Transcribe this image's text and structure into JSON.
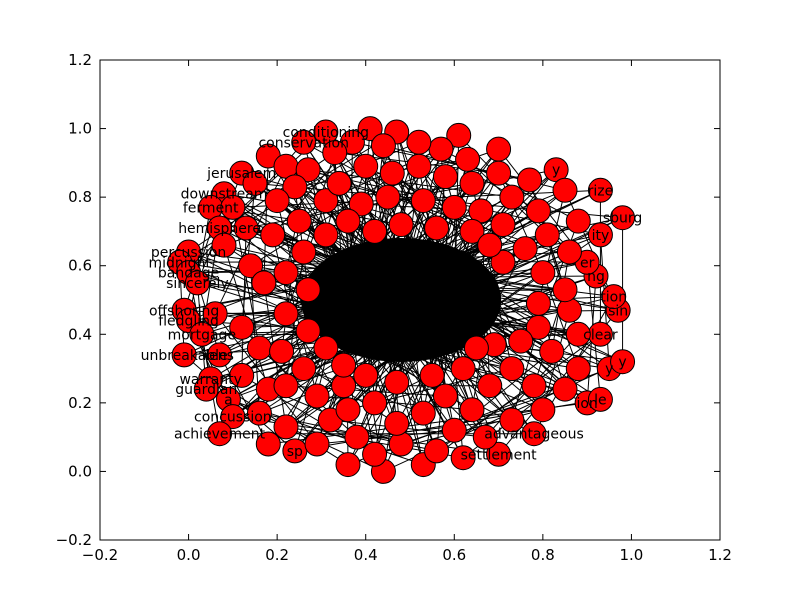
{
  "figure": {
    "background": "#ffffff"
  },
  "chart_data": {
    "type": "scatter",
    "title": "",
    "xlabel": "",
    "ylabel": "",
    "xlim": [
      -0.2,
      1.2
    ],
    "ylim": [
      -0.2,
      1.2
    ],
    "grid": false,
    "x_ticks": [
      -0.2,
      0.0,
      0.2,
      0.4,
      0.6,
      0.8,
      1.0,
      1.2
    ],
    "x_tick_labels": [
      "−0.2",
      "0.0",
      "0.2",
      "0.4",
      "0.6",
      "0.8",
      "1.0",
      "1.2"
    ],
    "y_ticks": [
      -0.2,
      0.0,
      0.2,
      0.4,
      0.6,
      0.8,
      1.0,
      1.2
    ],
    "y_tick_labels": [
      "−0.2",
      "0.0",
      "0.2",
      "0.4",
      "0.6",
      "0.8",
      "1.0",
      "1.2"
    ],
    "node_color": "#ff0000",
    "edge_color": "#000000",
    "center": [
      0.48,
      0.5
    ],
    "nodes": [
      {
        "x": 0.31,
        "y": 0.99,
        "label": "conditioning"
      },
      {
        "x": 0.41,
        "y": 1.0,
        "label": ""
      },
      {
        "x": 0.47,
        "y": 0.99,
        "label": ""
      },
      {
        "x": 0.26,
        "y": 0.96,
        "label": "conservation"
      },
      {
        "x": 0.12,
        "y": 0.87,
        "label": "jerusalem"
      },
      {
        "x": 0.08,
        "y": 0.81,
        "label": "downstream"
      },
      {
        "x": 0.05,
        "y": 0.77,
        "label": "ferment"
      },
      {
        "x": 0.07,
        "y": 0.71,
        "label": "hemisphere"
      },
      {
        "x": 0.0,
        "y": 0.64,
        "label": "percussion"
      },
      {
        "x": -0.02,
        "y": 0.61,
        "label": "midnight"
      },
      {
        "x": 0.0,
        "y": 0.58,
        "label": "bandage"
      },
      {
        "x": 0.02,
        "y": 0.55,
        "label": "sincerely"
      },
      {
        "x": -0.01,
        "y": 0.47,
        "label": "offshoring"
      },
      {
        "x": 0.0,
        "y": 0.44,
        "label": "fledgling"
      },
      {
        "x": 0.03,
        "y": 0.4,
        "label": "mortgage"
      },
      {
        "x": 0.07,
        "y": 0.34,
        "label": "lens"
      },
      {
        "x": -0.01,
        "y": 0.34,
        "label": "unbreakable"
      },
      {
        "x": 0.05,
        "y": 0.27,
        "label": "warranty"
      },
      {
        "x": 0.04,
        "y": 0.24,
        "label": "guardian"
      },
      {
        "x": 0.09,
        "y": 0.21,
        "label": "a"
      },
      {
        "x": 0.1,
        "y": 0.16,
        "label": "concussion"
      },
      {
        "x": 0.07,
        "y": 0.11,
        "label": "achievement"
      },
      {
        "x": 0.18,
        "y": 0.08,
        "label": ""
      },
      {
        "x": 0.24,
        "y": 0.06,
        "label": "sp"
      },
      {
        "x": 0.36,
        "y": 0.02,
        "label": ""
      },
      {
        "x": 0.44,
        "y": 0.0,
        "label": ""
      },
      {
        "x": 0.53,
        "y": 0.02,
        "label": ""
      },
      {
        "x": 0.7,
        "y": 0.05,
        "label": "settlement"
      },
      {
        "x": 0.78,
        "y": 0.11,
        "label": "advantageous"
      },
      {
        "x": 0.9,
        "y": 0.2,
        "label": "ion"
      },
      {
        "x": 0.93,
        "y": 0.21,
        "label": "le"
      },
      {
        "x": 0.95,
        "y": 0.3,
        "label": "y"
      },
      {
        "x": 0.98,
        "y": 0.32,
        "label": "y"
      },
      {
        "x": 0.93,
        "y": 0.4,
        "label": "clear"
      },
      {
        "x": 0.97,
        "y": 0.47,
        "label": "sin"
      },
      {
        "x": 0.96,
        "y": 0.51,
        "label": "tion"
      },
      {
        "x": 0.92,
        "y": 0.57,
        "label": "ng"
      },
      {
        "x": 0.9,
        "y": 0.61,
        "label": "er"
      },
      {
        "x": 0.93,
        "y": 0.69,
        "label": "ity"
      },
      {
        "x": 0.98,
        "y": 0.74,
        "label": "sburg"
      },
      {
        "x": 0.93,
        "y": 0.82,
        "label": "rize"
      },
      {
        "x": 0.83,
        "y": 0.88,
        "label": "y"
      },
      {
        "x": 0.7,
        "y": 0.94,
        "label": ""
      },
      {
        "x": 0.61,
        "y": 0.98,
        "label": ""
      },
      {
        "x": 0.18,
        "y": 0.92,
        "label": ""
      },
      {
        "x": 0.22,
        "y": 0.89,
        "label": ""
      },
      {
        "x": 0.15,
        "y": 0.84,
        "label": ""
      },
      {
        "x": 0.1,
        "y": 0.77,
        "label": ""
      },
      {
        "x": 0.13,
        "y": 0.71,
        "label": ""
      },
      {
        "x": 0.08,
        "y": 0.66,
        "label": ""
      },
      {
        "x": 0.14,
        "y": 0.6,
        "label": ""
      },
      {
        "x": 0.17,
        "y": 0.55,
        "label": ""
      },
      {
        "x": 0.06,
        "y": 0.46,
        "label": ""
      },
      {
        "x": 0.12,
        "y": 0.42,
        "label": ""
      },
      {
        "x": 0.16,
        "y": 0.36,
        "label": ""
      },
      {
        "x": 0.12,
        "y": 0.28,
        "label": ""
      },
      {
        "x": 0.18,
        "y": 0.24,
        "label": ""
      },
      {
        "x": 0.16,
        "y": 0.17,
        "label": ""
      },
      {
        "x": 0.22,
        "y": 0.13,
        "label": ""
      },
      {
        "x": 0.29,
        "y": 0.08,
        "label": ""
      },
      {
        "x": 0.32,
        "y": 0.15,
        "label": ""
      },
      {
        "x": 0.38,
        "y": 0.1,
        "label": ""
      },
      {
        "x": 0.42,
        "y": 0.05,
        "label": ""
      },
      {
        "x": 0.48,
        "y": 0.08,
        "label": ""
      },
      {
        "x": 0.56,
        "y": 0.06,
        "label": ""
      },
      {
        "x": 0.62,
        "y": 0.04,
        "label": ""
      },
      {
        "x": 0.6,
        "y": 0.12,
        "label": ""
      },
      {
        "x": 0.67,
        "y": 0.1,
        "label": ""
      },
      {
        "x": 0.73,
        "y": 0.15,
        "label": ""
      },
      {
        "x": 0.8,
        "y": 0.18,
        "label": ""
      },
      {
        "x": 0.85,
        "y": 0.24,
        "label": ""
      },
      {
        "x": 0.78,
        "y": 0.25,
        "label": ""
      },
      {
        "x": 0.88,
        "y": 0.3,
        "label": ""
      },
      {
        "x": 0.82,
        "y": 0.35,
        "label": ""
      },
      {
        "x": 0.88,
        "y": 0.4,
        "label": ""
      },
      {
        "x": 0.79,
        "y": 0.42,
        "label": ""
      },
      {
        "x": 0.86,
        "y": 0.47,
        "label": ""
      },
      {
        "x": 0.79,
        "y": 0.49,
        "label": ""
      },
      {
        "x": 0.85,
        "y": 0.53,
        "label": ""
      },
      {
        "x": 0.8,
        "y": 0.58,
        "label": ""
      },
      {
        "x": 0.86,
        "y": 0.64,
        "label": ""
      },
      {
        "x": 0.81,
        "y": 0.69,
        "label": ""
      },
      {
        "x": 0.88,
        "y": 0.73,
        "label": ""
      },
      {
        "x": 0.79,
        "y": 0.76,
        "label": ""
      },
      {
        "x": 0.85,
        "y": 0.82,
        "label": ""
      },
      {
        "x": 0.77,
        "y": 0.85,
        "label": ""
      },
      {
        "x": 0.7,
        "y": 0.87,
        "label": ""
      },
      {
        "x": 0.73,
        "y": 0.8,
        "label": ""
      },
      {
        "x": 0.63,
        "y": 0.91,
        "label": ""
      },
      {
        "x": 0.57,
        "y": 0.94,
        "label": ""
      },
      {
        "x": 0.52,
        "y": 0.96,
        "label": ""
      },
      {
        "x": 0.44,
        "y": 0.95,
        "label": ""
      },
      {
        "x": 0.37,
        "y": 0.96,
        "label": ""
      },
      {
        "x": 0.33,
        "y": 0.93,
        "label": ""
      },
      {
        "x": 0.27,
        "y": 0.88,
        "label": ""
      },
      {
        "x": 0.24,
        "y": 0.83,
        "label": ""
      },
      {
        "x": 0.31,
        "y": 0.79,
        "label": ""
      },
      {
        "x": 0.2,
        "y": 0.79,
        "label": ""
      },
      {
        "x": 0.25,
        "y": 0.73,
        "label": ""
      },
      {
        "x": 0.19,
        "y": 0.69,
        "label": ""
      },
      {
        "x": 0.26,
        "y": 0.64,
        "label": ""
      },
      {
        "x": 0.22,
        "y": 0.58,
        "label": ""
      },
      {
        "x": 0.27,
        "y": 0.53,
        "label": ""
      },
      {
        "x": 0.22,
        "y": 0.46,
        "label": ""
      },
      {
        "x": 0.27,
        "y": 0.41,
        "label": ""
      },
      {
        "x": 0.21,
        "y": 0.35,
        "label": ""
      },
      {
        "x": 0.26,
        "y": 0.3,
        "label": ""
      },
      {
        "x": 0.22,
        "y": 0.25,
        "label": ""
      },
      {
        "x": 0.29,
        "y": 0.22,
        "label": ""
      },
      {
        "x": 0.35,
        "y": 0.25,
        "label": ""
      },
      {
        "x": 0.36,
        "y": 0.18,
        "label": ""
      },
      {
        "x": 0.42,
        "y": 0.2,
        "label": ""
      },
      {
        "x": 0.47,
        "y": 0.14,
        "label": ""
      },
      {
        "x": 0.53,
        "y": 0.17,
        "label": ""
      },
      {
        "x": 0.58,
        "y": 0.22,
        "label": ""
      },
      {
        "x": 0.64,
        "y": 0.18,
        "label": ""
      },
      {
        "x": 0.68,
        "y": 0.25,
        "label": ""
      },
      {
        "x": 0.73,
        "y": 0.3,
        "label": ""
      },
      {
        "x": 0.69,
        "y": 0.37,
        "label": ""
      },
      {
        "x": 0.75,
        "y": 0.38,
        "label": ""
      },
      {
        "x": 0.71,
        "y": 0.61,
        "label": ""
      },
      {
        "x": 0.76,
        "y": 0.65,
        "label": ""
      },
      {
        "x": 0.71,
        "y": 0.72,
        "label": ""
      },
      {
        "x": 0.66,
        "y": 0.76,
        "label": ""
      },
      {
        "x": 0.64,
        "y": 0.84,
        "label": ""
      },
      {
        "x": 0.58,
        "y": 0.86,
        "label": ""
      },
      {
        "x": 0.52,
        "y": 0.89,
        "label": ""
      },
      {
        "x": 0.46,
        "y": 0.87,
        "label": ""
      },
      {
        "x": 0.4,
        "y": 0.89,
        "label": ""
      },
      {
        "x": 0.34,
        "y": 0.84,
        "label": ""
      },
      {
        "x": 0.39,
        "y": 0.78,
        "label": ""
      },
      {
        "x": 0.45,
        "y": 0.8,
        "label": ""
      },
      {
        "x": 0.53,
        "y": 0.79,
        "label": ""
      },
      {
        "x": 0.6,
        "y": 0.77,
        "label": ""
      },
      {
        "x": 0.64,
        "y": 0.7,
        "label": ""
      },
      {
        "x": 0.36,
        "y": 0.73,
        "label": ""
      },
      {
        "x": 0.31,
        "y": 0.69,
        "label": ""
      },
      {
        "x": 0.31,
        "y": 0.36,
        "label": ""
      },
      {
        "x": 0.35,
        "y": 0.31,
        "label": ""
      },
      {
        "x": 0.4,
        "y": 0.28,
        "label": ""
      },
      {
        "x": 0.47,
        "y": 0.26,
        "label": ""
      },
      {
        "x": 0.55,
        "y": 0.28,
        "label": ""
      },
      {
        "x": 0.62,
        "y": 0.3,
        "label": ""
      },
      {
        "x": 0.65,
        "y": 0.36,
        "label": ""
      },
      {
        "x": 0.68,
        "y": 0.66,
        "label": ""
      },
      {
        "x": 0.56,
        "y": 0.71,
        "label": ""
      },
      {
        "x": 0.48,
        "y": 0.72,
        "label": ""
      },
      {
        "x": 0.42,
        "y": 0.7,
        "label": ""
      }
    ]
  }
}
